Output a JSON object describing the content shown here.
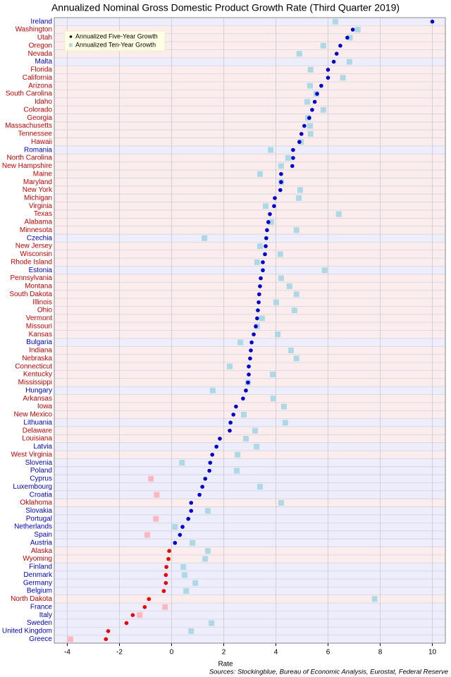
{
  "chart_data": {
    "type": "dot",
    "title": "Annualized Nominal Gross Domestic Product Growth Rate (Third Quarter 2019)",
    "x_label": "Rate",
    "source": "Sources: Stockingblue, Bureau of Economic Analysis, Eurostat, Federal Reserve",
    "legend": "top-left",
    "grid": true,
    "xlim": [
      -4.5,
      10.5
    ],
    "xticks": [
      -4,
      -2,
      0,
      2,
      4,
      6,
      8,
      10
    ],
    "categories": [
      "Ireland",
      "Washington",
      "Utah",
      "Oregon",
      "Nevada",
      "Malta",
      "Florida",
      "California",
      "Arizona",
      "South Carolina",
      "Idaho",
      "Colorado",
      "Georgia",
      "Massachusetts",
      "Tennessee",
      "Hawaii",
      "Romania",
      "North Carolina",
      "New Hampshire",
      "Maine",
      "Maryland",
      "New York",
      "Michigan",
      "Virginia",
      "Texas",
      "Alabama",
      "Minnesota",
      "Czechia",
      "New Jersey",
      "Wisconsin",
      "Rhode Island",
      "Estonia",
      "Pennsylvania",
      "Montana",
      "South Dakota",
      "Illinois",
      "Ohio",
      "Vermont",
      "Missouri",
      "Kansas",
      "Bulgaria",
      "Indiana",
      "Nebraska",
      "Connecticut",
      "Kentucky",
      "Mississippi",
      "Hungary",
      "Arkansas",
      "Iowa",
      "New Mexico",
      "Lithuania",
      "Delaware",
      "Louisiana",
      "Latvia",
      "West Virginia",
      "Slovenia",
      "Poland",
      "Cyprus",
      "Luxembourg",
      "Croatia",
      "Oklahoma",
      "Slovakia",
      "Portugal",
      "Netherlands",
      "Spain",
      "Austria",
      "Alaska",
      "Wyoming",
      "Finland",
      "Denmark",
      "Germany",
      "Belgium",
      "North Dakota",
      "France",
      "Italy",
      "Sweden",
      "United Kingdom",
      "Greece"
    ],
    "label_colors": [
      "#0000cc",
      "#cc0000",
      "#cc0000",
      "#cc0000",
      "#cc0000",
      "#0000cc",
      "#cc0000",
      "#cc0000",
      "#cc0000",
      "#cc0000",
      "#cc0000",
      "#cc0000",
      "#cc0000",
      "#cc0000",
      "#cc0000",
      "#cc0000",
      "#0000cc",
      "#cc0000",
      "#cc0000",
      "#cc0000",
      "#cc0000",
      "#cc0000",
      "#cc0000",
      "#cc0000",
      "#cc0000",
      "#cc0000",
      "#cc0000",
      "#0000cc",
      "#cc0000",
      "#cc0000",
      "#cc0000",
      "#0000cc",
      "#cc0000",
      "#cc0000",
      "#cc0000",
      "#cc0000",
      "#cc0000",
      "#cc0000",
      "#cc0000",
      "#cc0000",
      "#0000cc",
      "#cc0000",
      "#cc0000",
      "#cc0000",
      "#cc0000",
      "#cc0000",
      "#0000cc",
      "#cc0000",
      "#cc0000",
      "#cc0000",
      "#0000cc",
      "#cc0000",
      "#cc0000",
      "#0000cc",
      "#cc0000",
      "#0000cc",
      "#0000cc",
      "#0000cc",
      "#0000cc",
      "#0000cc",
      "#cc0000",
      "#0000cc",
      "#0000cc",
      "#0000cc",
      "#0000cc",
      "#0000cc",
      "#cc0000",
      "#cc0000",
      "#0000cc",
      "#0000cc",
      "#0000cc",
      "#0000cc",
      "#cc0000",
      "#0000cc",
      "#0000cc",
      "#0000cc",
      "#0000cc",
      "#0000cc"
    ],
    "series": [
      {
        "name": "Annualized Ten-Year Growth",
        "marker": "square",
        "color": "#add8e6",
        "negative_color": "#ffb6c1",
        "values": [
          6.28,
          7.14,
          6.84,
          5.82,
          4.9,
          6.82,
          5.33,
          6.57,
          5.31,
          5.55,
          5.2,
          5.82,
          5.23,
          5.31,
          5.33,
          4.96,
          3.8,
          4.47,
          4.2,
          3.39,
          4.2,
          4.93,
          4.88,
          3.61,
          6.41,
          3.82,
          4.79,
          1.26,
          3.39,
          4.17,
          3.28,
          5.87,
          4.2,
          4.52,
          4.79,
          4.01,
          4.71,
          3.47,
          3.28,
          4.07,
          2.64,
          4.58,
          4.79,
          2.23,
          3.88,
          2.93,
          1.58,
          3.9,
          4.31,
          2.77,
          4.36,
          3.2,
          2.85,
          3.26,
          2.53,
          0.4,
          2.5,
          -0.79,
          3.39,
          -0.57,
          4.2,
          1.39,
          -0.6,
          0.13,
          -0.93,
          0.8,
          1.39,
          1.29,
          0.45,
          0.5,
          0.91,
          0.56,
          7.79,
          -0.25,
          -1.22,
          1.53,
          0.75,
          -3.88
        ]
      },
      {
        "name": "Annualized Five-Year Growth",
        "marker": "circle",
        "color": "#0000cc",
        "negative_color": "#ee0000",
        "values": [
          10.0,
          6.95,
          6.74,
          6.47,
          6.33,
          6.22,
          6.0,
          6.0,
          5.74,
          5.58,
          5.49,
          5.39,
          5.28,
          5.09,
          4.98,
          4.9,
          4.66,
          4.66,
          4.63,
          4.2,
          4.2,
          4.17,
          3.96,
          3.93,
          3.77,
          3.71,
          3.66,
          3.63,
          3.61,
          3.58,
          3.5,
          3.5,
          3.42,
          3.39,
          3.36,
          3.34,
          3.31,
          3.28,
          3.23,
          3.15,
          3.07,
          3.04,
          3.01,
          2.96,
          2.96,
          2.93,
          2.85,
          2.74,
          2.47,
          2.37,
          2.26,
          2.23,
          1.85,
          1.72,
          1.56,
          1.48,
          1.45,
          1.29,
          1.18,
          1.07,
          0.75,
          0.75,
          0.64,
          0.42,
          0.32,
          0.13,
          -0.09,
          -0.12,
          -0.2,
          -0.22,
          -0.22,
          -0.3,
          -0.87,
          -1.03,
          -1.49,
          -1.73,
          -2.43,
          -2.52
        ]
      }
    ]
  }
}
